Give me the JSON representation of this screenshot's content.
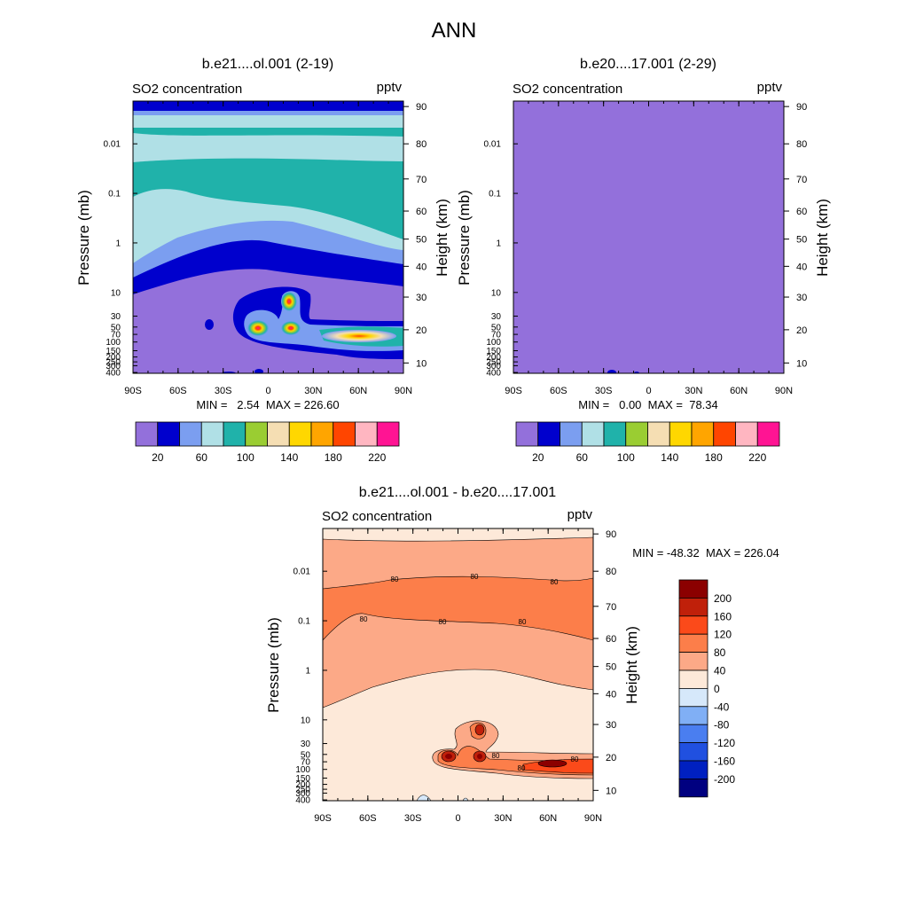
{
  "figure": {
    "title": "ANN"
  },
  "colors": {
    "seq": [
      "#9370db",
      "#0000cd",
      "#7b9ef0",
      "#b0e0e6",
      "#20b2aa",
      "#9acd32",
      "#f5deb3",
      "#ffd700",
      "#ffa500",
      "#ff4500",
      "#ffb6c1",
      "#ff1493"
    ],
    "div": [
      "#000080",
      "#0020c0",
      "#2050e0",
      "#4a7ef0",
      "#80aff5",
      "#d6e8fa",
      "#fde9d9",
      "#fca987",
      "#fc7e4a",
      "#fb4a1a",
      "#c0200a",
      "#8b0000"
    ]
  },
  "chart_data": [
    {
      "type": "heatmap",
      "title": "b.e21....ol.001 (2-19)",
      "variable": "SO2 concentration",
      "units": "pptv",
      "xlabel": "",
      "ylabel": "Pressure (mb)",
      "ylabel_right": "Height (km)",
      "x_ticks": [
        "90S",
        "60S",
        "30S",
        "0",
        "30N",
        "60N",
        "90N"
      ],
      "y_ticks": [
        "0.01",
        "0.1",
        "1",
        "10",
        "30",
        "50",
        "70",
        "100",
        "150",
        "200",
        "250",
        "300",
        "400"
      ],
      "y_ticks_right": [
        "90",
        "80",
        "70",
        "60",
        "50",
        "40",
        "30",
        "20",
        "10"
      ],
      "min": "2.54",
      "max": "226.60",
      "stats": "MIN =   2.54  MAX = 226.60",
      "colorbar_labels": [
        "20",
        "60",
        "100",
        "140",
        "180",
        "220"
      ],
      "levels": [
        10,
        20,
        30,
        40,
        50,
        60,
        70,
        80,
        90,
        100,
        110,
        120,
        130,
        140,
        150,
        160,
        170,
        180,
        190,
        200,
        210,
        220
      ]
    },
    {
      "type": "heatmap",
      "title": "b.e20....17.001 (2-29)",
      "variable": "SO2 concentration",
      "units": "pptv",
      "xlabel": "",
      "ylabel": "Pressure (mb)",
      "ylabel_right": "Height (km)",
      "x_ticks": [
        "90S",
        "60S",
        "30S",
        "0",
        "30N",
        "60N",
        "90N"
      ],
      "y_ticks": [
        "0.01",
        "0.1",
        "1",
        "10",
        "30",
        "50",
        "70",
        "100",
        "150",
        "200",
        "250",
        "300",
        "400"
      ],
      "y_ticks_right": [
        "90",
        "80",
        "70",
        "60",
        "50",
        "40",
        "30",
        "20",
        "10"
      ],
      "min": "0.00",
      "max": "78.34",
      "stats": "MIN =   0.00  MAX =  78.34",
      "colorbar_labels": [
        "20",
        "60",
        "100",
        "140",
        "180",
        "220"
      ]
    },
    {
      "type": "heatmap",
      "title": "b.e21....ol.001 - b.e20....17.001",
      "variable": "SO2 concentration",
      "units": "pptv",
      "xlabel": "",
      "ylabel": "Pressure (mb)",
      "ylabel_right": "Height (km)",
      "x_ticks": [
        "90S",
        "60S",
        "30S",
        "0",
        "30N",
        "60N",
        "90N"
      ],
      "y_ticks": [
        "0.01",
        "0.1",
        "1",
        "10",
        "30",
        "50",
        "70",
        "100",
        "150",
        "200",
        "250",
        "300",
        "400"
      ],
      "y_ticks_right": [
        "90",
        "80",
        "70",
        "60",
        "50",
        "40",
        "30",
        "20",
        "10"
      ],
      "min": "-48.32",
      "max": "226.04",
      "stats": "MIN = -48.32  MAX = 226.04",
      "colorbar_labels": [
        "200",
        "160",
        "120",
        "80",
        "40",
        "0",
        "-40",
        "-80",
        "-120",
        "-160",
        "-200"
      ],
      "contour_labels": [
        "80",
        "80",
        "80",
        "80",
        "80",
        "80",
        "80",
        "80",
        "80"
      ]
    }
  ]
}
